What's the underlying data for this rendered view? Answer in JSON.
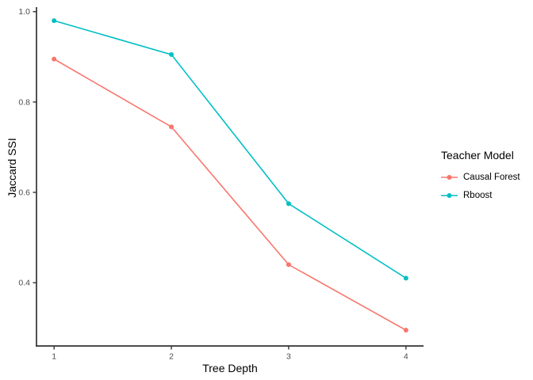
{
  "chart_data": {
    "type": "line",
    "x": [
      1,
      2,
      3,
      4
    ],
    "series": [
      {
        "name": "Causal Forest",
        "color": "#F8766D",
        "values": [
          0.895,
          0.745,
          0.44,
          0.295
        ]
      },
      {
        "name": "Rboost",
        "color": "#00BFC4",
        "values": [
          0.98,
          0.905,
          0.575,
          0.41
        ]
      }
    ],
    "title": "",
    "xlabel": "Tree Depth",
    "ylabel": "Jaccard SSI",
    "x_ticks": {
      "values": [
        1,
        2,
        3,
        4
      ],
      "labels": [
        "1",
        "2",
        "3",
        "4"
      ]
    },
    "y_ticks": {
      "values": [
        0.4,
        0.6,
        0.8,
        1.0
      ],
      "labels": [
        "0.4",
        "0.6",
        "0.8",
        "1.0"
      ]
    },
    "xlim": [
      0.85,
      4.15
    ],
    "ylim": [
      0.26,
      1.01
    ],
    "grid": false,
    "legend": {
      "title": "Teacher Model",
      "position": "right"
    },
    "colors": {
      "axis_line": "#333333",
      "tick_label": "#4D4D4D",
      "axis_title": "#000000",
      "background": "#FFFFFF"
    },
    "style": {
      "point_radius": 3,
      "line_width": 1.6,
      "axis_width": 1.7,
      "tick_length": 4.5,
      "tick_font_size": 10.5
    }
  }
}
